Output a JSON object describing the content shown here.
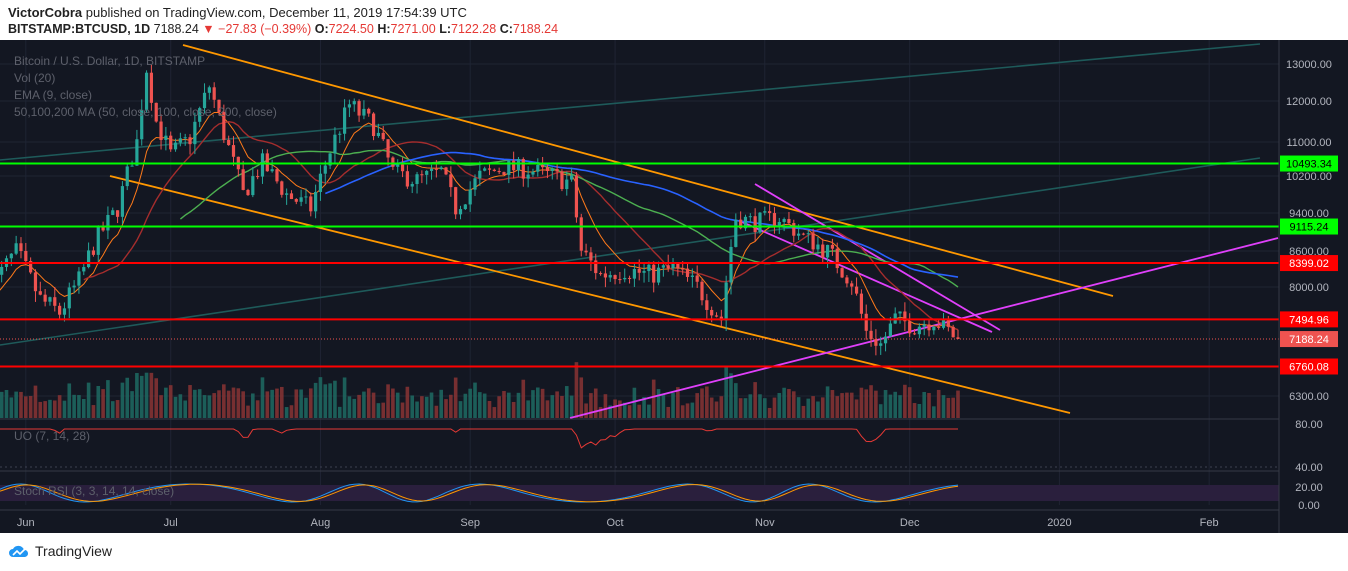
{
  "header": {
    "author": "VictorCobra",
    "published_text": "published on TradingView.com, December 11, 2019 17:54:39 UTC",
    "symbol": "BITSTAMP:BTCUSD, 1D",
    "price": "7188.24",
    "change_arrow": "▼",
    "change": "−27.83 (−0.39%)",
    "o_label": "O:",
    "o_value": "7224.50",
    "h_label": "H:",
    "h_value": "7271.00",
    "l_label": "L:",
    "l_value": "7122.28",
    "c_label": "C:",
    "c_value": "7188.24"
  },
  "legend": {
    "title": "Bitcoin / U.S. Dollar, 1D, BITSTAMP",
    "vol": "Vol (20)",
    "ema": "EMA (9, close)",
    "ma": "50,100,200 MA (50, close, 100, close, 200, close)"
  },
  "footer": {
    "brand": "TradingView"
  },
  "colors": {
    "bg": "#131722",
    "up": "#26a69a",
    "down": "#ef5350",
    "green_level": "#00ff00",
    "red_level": "#ff0000",
    "orange": "#ff9800",
    "magenta": "#e040fb",
    "teal_line": "#1e5a5a"
  },
  "chart_data": {
    "type": "candlestick",
    "y_ticks": [
      "13000.00",
      "12000.00",
      "11000.00",
      "10200.00",
      "9400.00",
      "8600.00",
      "8000.00",
      "6300.00"
    ],
    "x_ticks": [
      "Jun",
      "Jul",
      "Aug",
      "Sep",
      "Oct",
      "Nov",
      "Dec",
      "2020",
      "Feb"
    ],
    "levels": [
      {
        "value": "10493.34",
        "color": "green"
      },
      {
        "value": "9115.24",
        "color": "green"
      },
      {
        "value": "8399.02",
        "color": "red"
      },
      {
        "value": "7494.96",
        "color": "red"
      },
      {
        "value": "7188.24",
        "color": "current"
      },
      {
        "value": "6760.08",
        "color": "red"
      }
    ],
    "close_path": [
      [
        "2019-05-25",
        8000
      ],
      [
        "2019-05-30",
        8600
      ],
      [
        "2019-06-04",
        7800
      ],
      [
        "2019-06-08",
        7600
      ],
      [
        "2019-06-12",
        8100
      ],
      [
        "2019-06-16",
        8900
      ],
      [
        "2019-06-20",
        9500
      ],
      [
        "2019-06-24",
        11000
      ],
      [
        "2019-06-26",
        12900
      ],
      [
        "2019-06-28",
        11500
      ],
      [
        "2019-07-01",
        10700
      ],
      [
        "2019-07-05",
        11100
      ],
      [
        "2019-07-09",
        12400
      ],
      [
        "2019-07-12",
        11200
      ],
      [
        "2019-07-16",
        9800
      ],
      [
        "2019-07-20",
        10500
      ],
      [
        "2019-07-25",
        9800
      ],
      [
        "2019-07-30",
        9500
      ],
      [
        "2019-08-03",
        10800
      ],
      [
        "2019-08-07",
        11900
      ],
      [
        "2019-08-12",
        11400
      ],
      [
        "2019-08-16",
        10300
      ],
      [
        "2019-08-21",
        10100
      ],
      [
        "2019-08-26",
        10300
      ],
      [
        "2019-08-29",
        9500
      ],
      [
        "2019-09-03",
        10200
      ],
      [
        "2019-09-08",
        10400
      ],
      [
        "2019-09-13",
        10350
      ],
      [
        "2019-09-18",
        10200
      ],
      [
        "2019-09-22",
        10050
      ],
      [
        "2019-09-24",
        8600
      ],
      [
        "2019-09-28",
        8200
      ],
      [
        "2019-10-03",
        8300
      ],
      [
        "2019-10-08",
        8200
      ],
      [
        "2019-10-13",
        8300
      ],
      [
        "2019-10-18",
        8000
      ],
      [
        "2019-10-23",
        7500
      ],
      [
        "2019-10-26",
        9300
      ],
      [
        "2019-10-30",
        9200
      ],
      [
        "2019-11-04",
        9300
      ],
      [
        "2019-11-09",
        8900
      ],
      [
        "2019-11-14",
        8600
      ],
      [
        "2019-11-19",
        8100
      ],
      [
        "2019-11-22",
        7300
      ],
      [
        "2019-11-25",
        7100
      ],
      [
        "2019-11-28",
        7500
      ],
      [
        "2019-12-02",
        7400
      ],
      [
        "2019-12-06",
        7500
      ],
      [
        "2019-12-10",
        7250
      ],
      [
        "2019-12-11",
        7188
      ]
    ],
    "indicators": [
      {
        "name": "UO (7, 14, 28)",
        "ticks": [
          "80.00",
          "40.00"
        ]
      },
      {
        "name": "Stoch RSI (3, 3, 14, 14, close)",
        "ticks": [
          "20.00",
          "0.00"
        ]
      }
    ]
  }
}
